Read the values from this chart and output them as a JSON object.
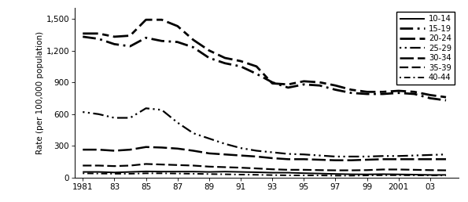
{
  "years": [
    1981,
    1982,
    1983,
    1984,
    1985,
    1986,
    1987,
    1988,
    1989,
    1990,
    1991,
    1992,
    1993,
    1994,
    1995,
    1996,
    1997,
    1998,
    1999,
    2000,
    2001,
    2002,
    2003,
    2004
  ],
  "series": {
    "10-14": [
      55,
      55,
      50,
      55,
      60,
      58,
      58,
      58,
      55,
      58,
      55,
      52,
      48,
      48,
      43,
      40,
      36,
      33,
      32,
      34,
      32,
      30,
      27,
      27
    ],
    "15-19": [
      1330,
      1310,
      1260,
      1240,
      1320,
      1290,
      1280,
      1230,
      1130,
      1080,
      1050,
      980,
      900,
      850,
      880,
      870,
      830,
      800,
      790,
      790,
      800,
      790,
      750,
      730
    ],
    "20-24": [
      1360,
      1360,
      1330,
      1340,
      1490,
      1490,
      1430,
      1300,
      1200,
      1130,
      1100,
      1050,
      890,
      880,
      910,
      900,
      870,
      830,
      810,
      810,
      820,
      810,
      780,
      760
    ],
    "25-29": [
      620,
      600,
      565,
      565,
      655,
      640,
      520,
      420,
      370,
      320,
      280,
      255,
      240,
      225,
      220,
      210,
      200,
      200,
      200,
      205,
      205,
      210,
      215,
      220
    ],
    "30-34": [
      265,
      265,
      255,
      265,
      290,
      285,
      275,
      255,
      230,
      220,
      210,
      200,
      185,
      175,
      175,
      170,
      165,
      165,
      170,
      175,
      175,
      175,
      175,
      175
    ],
    "35-39": [
      115,
      115,
      110,
      115,
      130,
      125,
      120,
      115,
      105,
      100,
      95,
      88,
      80,
      75,
      75,
      72,
      70,
      70,
      72,
      78,
      78,
      75,
      72,
      70
    ],
    "40-44": [
      42,
      40,
      38,
      38,
      42,
      42,
      40,
      38,
      35,
      33,
      30,
      28,
      25,
      23,
      22,
      22,
      20,
      20,
      22,
      24,
      24,
      23,
      22,
      22
    ]
  },
  "xtick_labels": [
    "1981",
    "83",
    "85",
    "87",
    "89",
    "91",
    "93",
    "95",
    "97",
    "99",
    "2001",
    "03"
  ],
  "xtick_values": [
    1981,
    1983,
    1985,
    1987,
    1989,
    1991,
    1993,
    1995,
    1997,
    1999,
    2001,
    2003
  ],
  "ytick_labels": [
    "0",
    "300",
    "600",
    "900",
    "1,200",
    "1,500"
  ],
  "ytick_values": [
    0,
    300,
    600,
    900,
    1200,
    1500
  ],
  "ylabel": "Rate (per 100,000 population)",
  "ylim": [
    0,
    1600
  ],
  "xlim": [
    1980.5,
    2004.8
  ],
  "color": "black",
  "background_color": "white",
  "age_groups": [
    "10-14",
    "15-19",
    "20-24",
    "25-29",
    "30-34",
    "35-39",
    "40-44"
  ]
}
